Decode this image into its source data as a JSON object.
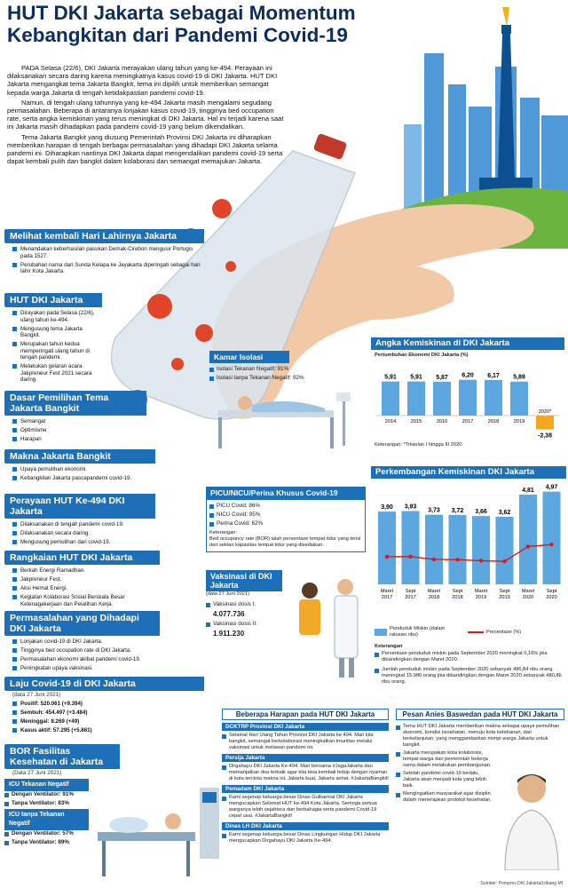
{
  "title": "HUT DKI Jakarta sebagai Momentum Kebangkitan dari Pandemi Covid-19",
  "intro": {
    "p1": "PADA Selasa (22/6), DKI Jakarta merayakan ulang tahun yang ke-494. Perayaan ini dilaksanakan secara daring karena meningkatnya kasus covid-19 di DKI Jakarta. HUT DKI Jakarta mengangkat tema Jakarta Bangkit, tema ini dipilih untuk memberikan semangat kepada warga Jakarta di tengah ketidakpastian pandemi covid-19.",
    "p2": "Namun, di tengah ulang tahunnya yang ke-494 Jakarta masih mengalami segudang permasalahan. Beberapa di antaranya lonjakan kasus covid-19, tingginya bed occupation rate, serta angka kemiskinan yang terus meningkat di DKI Jakarta. Hal ini terjadi karena saat ini Jakarta masih dihadapkan pada pandemi covid-19 yang belum dikendalikan.",
    "p3": "Tema Jakarta Bangkit yang diusung Pemerintah Provinsi DKI Jakarta ini diharapkan memberikan harapan di tengah berbagai permasalahan yang dihadapi DKI Jakarta selama pandemi ini. Diharapkan nantinya DKI Jakarta dapat mengendalikan pandemi covid-19 serta dapat kembali pulih dan bangkit dalam kolaborasi dan semangat memajukan Jakarta."
  },
  "sections": [
    {
      "header": "Melihat kembali Hari Lahirnya Jakarta",
      "items": [
        "Menandakan keberhasilan pasukan Demak-Cirebon mengusir Portugis pada 1527.",
        "Perubahan nama dari Sunda Kelapa ke Jayakarta diperingati sebagai hari lahir Kota Jakarta."
      ]
    },
    {
      "header": "HUT DKI Jakarta",
      "items": [
        "Dirayakan pada Selasa (22/6), ulang tahun ke-494.",
        "Mengusung tema Jakarta Bangkit.",
        "Merupakan tahun kedua memperingati ulang tahun di tengah pandemi.",
        "Melakukan gelaran acara Jakpreneur Fest 2021 secara daring."
      ]
    },
    {
      "header": "Dasar Pemilihan Tema Jakarta Bangkit",
      "items": [
        "Semangat",
        "Optimisme",
        "Harapan"
      ]
    },
    {
      "header": "Makna Jakarta Bangkit",
      "items": [
        "Upaya pemulihan ekonomi.",
        "Kebangkitan Jakarta pascapandemi covid-19."
      ]
    },
    {
      "header": "Perayaan HUT Ke-494 DKI Jakarta",
      "items": [
        "Dilaksanakan di tengah pandemi covid-19.",
        "Dilaksanakan secara daring.",
        "Mengusung pemulihan dari covid-19."
      ]
    },
    {
      "header": "Rangkaian HUT DKI Jakarta",
      "items": [
        "Berkah Energi Ramadhan.",
        "Jakpreneur Fest.",
        "Aksi Hemat Energi.",
        "Kegiatan Kolaborasi Sosial Berskala Besar Ketenagakerjaan dan Pelatihan Kerja."
      ]
    },
    {
      "header": "Permasalahan yang Dihadapi DKI Jakarta",
      "items": [
        "Lonjakan covid-19 di DKI Jakarta.",
        "Tingginya bed occupation rate di DKI Jakarta.",
        "Permasalahan ekonomi akibat pandemi covid-19.",
        "Peningkatan upaya vaksinasi."
      ]
    },
    {
      "header": "Laju Covid-19 di DKI Jakarta",
      "subtitle": "(data 27 Juni 2021)",
      "items": [
        "Positif: 520.061 (+9.394)",
        "Sembuh: 454.497 (+3.484)",
        "Meninggal: 8.269 (+49)",
        "Kasus aktif: 57.295 (+5.861)"
      ]
    }
  ],
  "bor": {
    "header": "BOR Fasilitas Kesehatan di Jakarta",
    "subtitle": "(Data 27 Juni 2021)",
    "icu_neg_title": "ICU Tekanan Negatif",
    "icu_neg_items": [
      "Dengan Ventilator: 91%",
      "Tanpa Ventilator: 83%"
    ],
    "icu_no_title": "ICU tanpa Tekanan Negatif",
    "icu_no_items": [
      "Dengan Ventilator: 57%",
      "Tanpa Ventilator: 89%"
    ]
  },
  "kamar": {
    "title": "Kamar Isolasi",
    "items": [
      "Isolasi Tekanan Negatif: 91%",
      "Isolasi tanpa Tekanan Negatif: 92%"
    ]
  },
  "picu": {
    "title": "PICU/NICU/Perina Khusus Covid-19",
    "items": [
      "PICU Covid: 86%",
      "NICU Covid: 95%",
      "Perina Covid: 62%"
    ],
    "note_title": "Keterangan:",
    "note": "Bed occupancy rate (BOR) ialah persentase tempat tidur yang terisi dari sekian kapasitas tempat tidur yang disediakan."
  },
  "vaksin": {
    "title": "Vaksinasi di DKI Jakarta",
    "subtitle": "(data 27 Juni 2021)",
    "dosis1_label": "Vaksinasi dosis I:",
    "dosis1": "4.077.736",
    "dosis2_label": "Vaksinasi dosis II:",
    "dosis2": "1.911.230"
  },
  "chart_data": [
    {
      "type": "bar",
      "title": "Angka Kemiskinan di DKI Jakarta",
      "subtitle": "Pertumbuhan Ekonomi DKI Jakarta (%)",
      "categories": [
        "2014",
        "2015",
        "2016",
        "2017",
        "2018",
        "2019",
        "2020*"
      ],
      "values": [
        5.91,
        5.91,
        5.87,
        6.2,
        6.17,
        5.89,
        -2.38
      ],
      "value_labels": [
        "5,91",
        "5,91",
        "5,87",
        "6,20",
        "6,17",
        "5,89",
        "-2,38"
      ],
      "note": "Keterangan: *Triwulan I hingga III 2020",
      "colors": {
        "positive": "#5ca7e0",
        "negative": "#f5a623"
      }
    },
    {
      "type": "bar+line",
      "title": "Perkembangan Kemiskinan DKI Jakarta",
      "categories": [
        "Maret 2017",
        "Sept 2017",
        "Maret 2018",
        "Sept 2018",
        "Maret 2019",
        "Sept 2019",
        "Maret 2020",
        "Sept 2020"
      ],
      "bar_series": {
        "name": "Penduduk Miskin (dalam ratusan ribu)",
        "values": [
          3.9,
          3.93,
          3.73,
          3.72,
          3.66,
          3.62,
          4.81,
          4.97
        ],
        "labels": [
          "3,90",
          "3,93",
          "3,73",
          "3,72",
          "3,66",
          "3,62",
          "4,81",
          "4,97"
        ]
      },
      "line_series": {
        "name": "Persentase (%)",
        "values": [
          3.77,
          3.78,
          3.57,
          3.55,
          3.47,
          3.42,
          4.53,
          4.69
        ]
      },
      "legend_bar": "Penduduk Miskin (dalam ratusan ribu)",
      "legend_line": "Persentase (%)",
      "note_title": "Keterangan",
      "notes": [
        "Persentase penduduk miskin pada September 2020 meningkat 0,16% jika dibandingkan dengan Maret 2020.",
        "Jumlah penduduk miskin pada September 2020 sebanyak 496,84 ribu orang meningkat 15.980 orang jika dibandingkan dengan Maret 2020 sebanyak 480,86 ribu orang."
      ]
    }
  ],
  "harapan": {
    "title": "Beberapa Harapan pada HUT DKI Jakarta",
    "groups": [
      {
        "head": "DCKTRP Provinsi DKI Jakarta",
        "text": "Selamat Hari Ulang Tahun Provinsi DKI Jakarta ke 494. Mari kita bangkit, semangat berkolaborasi meningkatkan imunitas melalui vaksinasi untuk melawan pandemi ini."
      },
      {
        "head": "Persija Jakarta",
        "text": "Dirgahayu DKI Jakarta Ke-494. Mari bersama #JagaJakarta dan memanjatkan doa terbaik agar kita bisa kembali hidup dengan nyaman di kota tercinta makna ini. Jakarta kuat, Jakarta sehat. #JakartaBangkit!"
      },
      {
        "head": "Pemadam DKI Jakarta",
        "text": "Kami segenap keluarga besar Dinas Gulkarmat DKI Jakarta mengucapkan Selamat HUT ke-494 Kota Jakarta. Semoga semua warganya lebih sejahtera dan berbahagia serta pandemi Covid-19 cepat usai. #JakartaBangkit!"
      },
      {
        "head": "Dinas LH DKI Jakarta",
        "text": "Kami segenap keluarga besar Dinas Lingkungan Hidup DKI Jakarta mengucapkan Dirgahayu DKI Jakarta Ke-494."
      }
    ]
  },
  "pesan": {
    "title": "Pesan Anies Baswedan pada HUT DKI Jakarta",
    "items": [
      "Tema HUT DKI Jakarta memberikan makna sebagai upaya pemulihan ekonomi, kondisi kesehatan, menuju kota ketahanan, dan berkelanjutan, yang menggambarkan mimpi warga Jakarta untuk bangkit.",
      "Jakarta merupakan kota kolaborasi, tempat warga dan pemerintah bekerja sama dalam melakukan pembangunan.",
      "Setelah pandemi covid-19 berlalu, Jakarta akan menjadi kota yang lebih baik.",
      "Mengingatkan masyarakat agar disiplin dalam menerapkan protokol kesehatan."
    ]
  },
  "source": "Sumber: Pemprov DKI Jakarta/Litbang MI",
  "colors": {
    "primary": "#1d6fb8",
    "dark": "#0e2d5c",
    "virus": "#e0452a",
    "light_blue": "#5ca7e0"
  }
}
